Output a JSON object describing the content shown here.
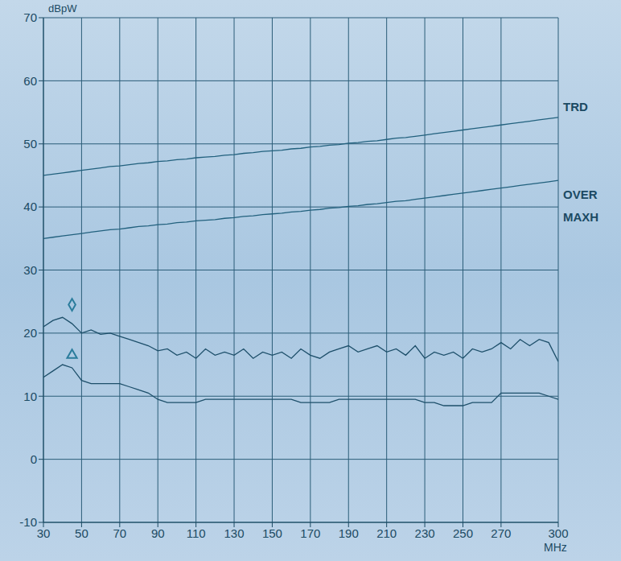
{
  "chart_data": {
    "type": "line",
    "y_label": "dBpW",
    "x_label": "MHz",
    "x": [
      30,
      35,
      40,
      45,
      50,
      55,
      60,
      65,
      70,
      75,
      80,
      85,
      90,
      95,
      100,
      105,
      110,
      115,
      120,
      125,
      130,
      135,
      140,
      145,
      150,
      155,
      160,
      165,
      170,
      175,
      180,
      185,
      190,
      195,
      200,
      205,
      210,
      215,
      220,
      225,
      230,
      235,
      240,
      245,
      250,
      255,
      260,
      265,
      270,
      275,
      280,
      285,
      290,
      295,
      300
    ],
    "xlim": [
      30,
      300
    ],
    "xticks": [
      30,
      50,
      70,
      90,
      110,
      130,
      150,
      170,
      190,
      210,
      230,
      250,
      270,
      300
    ],
    "ylim": [
      -10,
      70
    ],
    "yticks": [
      -10,
      0,
      10,
      20,
      30,
      40,
      50,
      60,
      70
    ],
    "grid": true,
    "legend": false,
    "series": [
      {
        "type": "line",
        "marker": "none",
        "color": "#22617e",
        "values": [
          45,
          45.2,
          45.4,
          45.6,
          45.8,
          46,
          46.2,
          46.4,
          46.5,
          46.7,
          46.9,
          47,
          47.2,
          47.3,
          47.5,
          47.6,
          47.8,
          47.9,
          48,
          48.2,
          48.3,
          48.5,
          48.6,
          48.8,
          48.9,
          49,
          49.2,
          49.3,
          49.5,
          49.6,
          49.8,
          49.9,
          50.1,
          50.2,
          50.4,
          50.5,
          50.7,
          50.9,
          51,
          51.2,
          51.4,
          51.6,
          51.8,
          52,
          52.2,
          52.4,
          52.6,
          52.8,
          53,
          53.2,
          53.4,
          53.6,
          53.8,
          54,
          54.2
        ]
      },
      {
        "type": "line",
        "marker": "none",
        "color": "#22617e",
        "values": [
          35,
          35.2,
          35.4,
          35.6,
          35.8,
          36,
          36.2,
          36.4,
          36.5,
          36.7,
          36.9,
          37,
          37.2,
          37.3,
          37.5,
          37.6,
          37.8,
          37.9,
          38,
          38.2,
          38.3,
          38.5,
          38.6,
          38.8,
          38.9,
          39,
          39.2,
          39.3,
          39.5,
          39.6,
          39.8,
          39.9,
          40.1,
          40.2,
          40.4,
          40.5,
          40.7,
          40.9,
          41,
          41.2,
          41.4,
          41.6,
          41.8,
          42,
          42.2,
          42.4,
          42.6,
          42.8,
          43,
          43.2,
          43.4,
          43.6,
          43.8,
          44,
          44.2
        ]
      },
      {
        "type": "line",
        "marker": "none",
        "color": "#1d4f6a",
        "values": [
          21,
          22,
          22.5,
          21.5,
          20,
          20.5,
          19.8,
          20,
          19.5,
          19,
          18.5,
          18,
          17.2,
          17.5,
          16.5,
          17,
          16,
          17.5,
          16.5,
          17,
          16.5,
          17.5,
          16,
          17,
          16.5,
          17,
          16,
          17.5,
          16.5,
          16,
          17,
          17.5,
          18,
          17,
          17.5,
          18,
          17,
          17.5,
          16.5,
          18,
          16,
          17,
          16.5,
          17,
          16,
          17.5,
          17,
          17.5,
          18.5,
          17.5,
          19,
          18,
          19,
          18.5,
          15.5
        ]
      },
      {
        "type": "line",
        "marker": "none",
        "color": "#1d4f6a",
        "values": [
          13,
          14,
          15,
          14.5,
          12.5,
          12,
          12,
          12,
          12,
          11.5,
          11,
          10.5,
          9.5,
          9,
          9,
          9,
          9,
          9.5,
          9.5,
          9.5,
          9.5,
          9.5,
          9.5,
          9.5,
          9.5,
          9.5,
          9.5,
          9,
          9,
          9,
          9,
          9.5,
          9.5,
          9.5,
          9.5,
          9.5,
          9.5,
          9.5,
          9.5,
          9.5,
          9,
          9,
          8.5,
          8.5,
          8.5,
          9,
          9,
          9,
          10.5,
          10.5,
          10.5,
          10.5,
          10.5,
          10,
          9.5
        ]
      },
      {
        "type": "scatter",
        "marker": "diamond",
        "color": "#2a7c9c",
        "x": [
          45
        ],
        "values": [
          24.5
        ]
      },
      {
        "type": "scatter",
        "marker": "triangle",
        "color": "#2a7c9c",
        "x": [
          45
        ],
        "values": [
          16.5
        ]
      }
    ],
    "annotations": [
      {
        "text": "TRD",
        "y": 56
      },
      {
        "text": "OVER",
        "y": 42
      },
      {
        "text": "MAXH",
        "y": 38.5
      }
    ]
  }
}
